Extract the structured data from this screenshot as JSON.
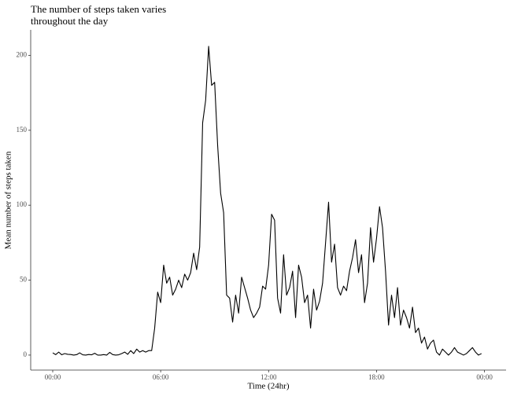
{
  "chart_data": {
    "type": "line",
    "title": "The number of steps taken varies throughout the day",
    "x_label": "Time (24hr)",
    "y_label": "Mean number of steps taken",
    "color": "#000000",
    "x": [
      0,
      10,
      20,
      30,
      40,
      50,
      60,
      70,
      80,
      90,
      100,
      110,
      120,
      130,
      140,
      150,
      160,
      170,
      180,
      190,
      200,
      210,
      220,
      230,
      240,
      250,
      260,
      270,
      280,
      290,
      300,
      310,
      320,
      330,
      340,
      350,
      360,
      370,
      380,
      390,
      400,
      410,
      420,
      430,
      440,
      450,
      460,
      470,
      480,
      490,
      500,
      510,
      520,
      530,
      540,
      550,
      560,
      570,
      580,
      590,
      600,
      610,
      620,
      630,
      640,
      650,
      660,
      670,
      680,
      690,
      700,
      710,
      720,
      730,
      740,
      750,
      760,
      770,
      780,
      790,
      800,
      810,
      820,
      830,
      840,
      850,
      860,
      870,
      880,
      890,
      900,
      910,
      920,
      930,
      940,
      950,
      960,
      970,
      980,
      990,
      1000,
      1010,
      1020,
      1030,
      1040,
      1050,
      1060,
      1070,
      1080,
      1090,
      1100,
      1110,
      1120,
      1130,
      1140,
      1150,
      1160,
      1170,
      1180,
      1190,
      1200,
      1210,
      1220,
      1230,
      1240,
      1250,
      1260,
      1270,
      1280,
      1290,
      1300,
      1310,
      1320,
      1330,
      1340,
      1350,
      1360,
      1370,
      1380,
      1390,
      1400,
      1410,
      1420,
      1430
    ],
    "values": [
      1.5,
      0.3,
      2,
      0.2,
      1,
      0.5,
      0.4,
      0,
      0.3,
      1.5,
      0.2,
      0,
      0.4,
      0.2,
      1.2,
      0,
      0,
      0.3,
      0,
      1.8,
      0.3,
      0,
      0.2,
      1,
      2,
      0.5,
      3,
      1,
      4,
      2,
      3,
      2,
      3,
      3,
      18,
      42,
      35,
      60,
      48,
      52,
      40,
      44,
      50,
      45,
      54,
      50,
      55,
      68,
      57,
      72,
      155,
      170,
      206,
      180,
      182,
      140,
      108,
      95,
      40,
      38,
      22,
      40,
      28,
      52,
      45,
      38,
      30,
      25,
      28,
      32,
      46,
      44,
      60,
      94,
      90,
      38,
      28,
      67,
      40,
      45,
      56,
      25,
      60,
      52,
      35,
      40,
      18,
      44,
      30,
      36,
      48,
      75,
      102,
      62,
      74,
      45,
      40,
      46,
      43,
      56,
      65,
      77,
      55,
      67,
      35,
      48,
      85,
      62,
      78,
      99,
      85,
      56,
      20,
      40,
      25,
      45,
      20,
      30,
      25,
      18,
      32,
      15,
      18,
      8,
      12,
      4,
      8,
      10,
      2,
      0,
      4,
      2,
      0,
      2,
      5,
      2,
      1,
      0,
      1,
      3,
      5,
      2,
      0,
      1
    ],
    "xlim": [
      -73.5,
      1512
    ],
    "ylim": [
      -10,
      217
    ],
    "xticks": [
      {
        "value": 0,
        "label": "00:00"
      },
      {
        "value": 360,
        "label": "06:00"
      },
      {
        "value": 720,
        "label": "12:00"
      },
      {
        "value": 1080,
        "label": "18:00"
      },
      {
        "value": 1440,
        "label": "00:00"
      }
    ],
    "yticks": [
      0,
      50,
      100,
      150,
      200
    ]
  }
}
